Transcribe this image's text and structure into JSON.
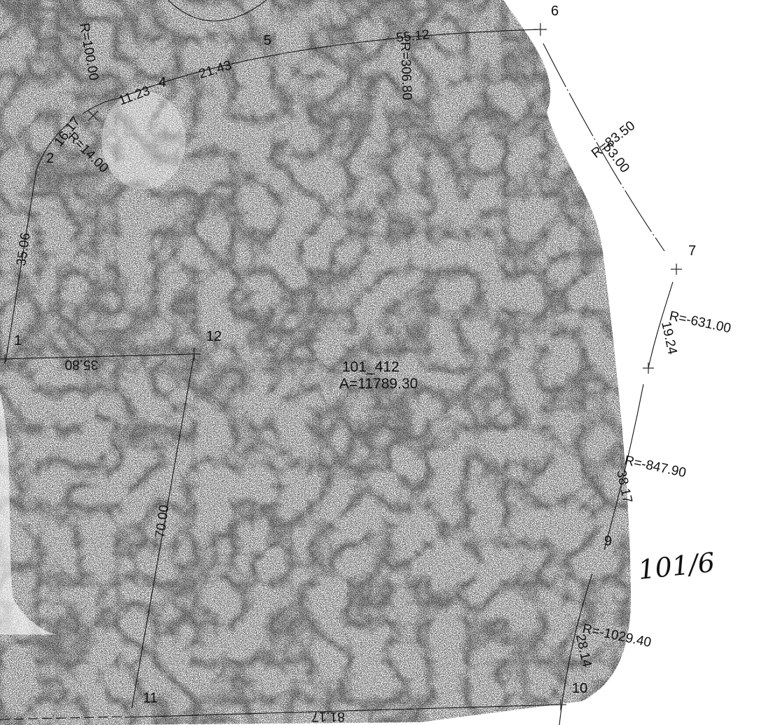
{
  "parcel": {
    "id": "101_412",
    "area_text": "A=11789.30",
    "handwritten_label": "101/6"
  },
  "points": [
    {
      "key": "p1",
      "label": "1"
    },
    {
      "key": "p2",
      "label": "2"
    },
    {
      "key": "p4",
      "label": "4"
    },
    {
      "key": "p5",
      "label": "5"
    },
    {
      "key": "p6",
      "label": "6"
    },
    {
      "key": "p7",
      "label": "7"
    },
    {
      "key": "p9",
      "label": "9"
    },
    {
      "key": "p10",
      "label": "10"
    },
    {
      "key": "p11",
      "label": "11"
    },
    {
      "key": "p12",
      "label": "12"
    }
  ],
  "dimensions": {
    "d_100": "R=100.00",
    "d_11_23": "11.23",
    "d_21_43": "21.43",
    "d_55_12": "55.12",
    "d_306_80": "R=306.80",
    "d_16_17": "16.17",
    "d_14_00": "R=14.00",
    "d_35_06": "35.06",
    "d_35_80": "35.80",
    "d_83_50": "R=83.50",
    "d_53_00": "53.00",
    "d_631_00": "R=-631.00",
    "d_19_24": "19.24",
    "d_847_90": "R=-847.90",
    "d_38_17": "38.17",
    "d_1029_40": "R=-1029.40",
    "d_28_14": "28.14",
    "d_70_00": "70.00",
    "d_81_17": "81.17"
  }
}
